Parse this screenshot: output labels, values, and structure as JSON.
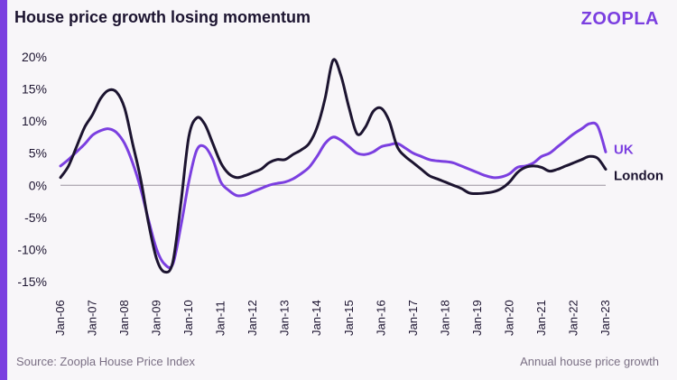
{
  "header": {
    "title": "House price growth losing momentum",
    "logo_text": "ZOOPLA"
  },
  "footer": {
    "source": "Source: Zoopla House Price Index",
    "note": "Annual house price growth"
  },
  "colors": {
    "accent": "#7b3fe0",
    "uk": "#7b3fe0",
    "london": "#1c1430",
    "zero_line": "#9a949f"
  },
  "chart_data": {
    "type": "line",
    "title": "House price growth losing momentum",
    "xlabel": "",
    "ylabel": "",
    "ylim": [
      -15,
      20
    ],
    "xlim": [
      "2006-01",
      "2023-01"
    ],
    "y_ticks": [
      "20%",
      "15%",
      "10%",
      "5%",
      "0%",
      "-5%",
      "-10%",
      "-15%"
    ],
    "x_ticks": [
      "Jan-06",
      "Jan-07",
      "Jan-08",
      "Jan-09",
      "Jan-10",
      "Jan-11",
      "Jan-12",
      "Jan-13",
      "Jan-14",
      "Jan-15",
      "Jan-16",
      "Jan-17",
      "Jan-18",
      "Jan-19",
      "Jan-20",
      "Jan-21",
      "Jan-22",
      "Jan-23"
    ],
    "grid": false,
    "legend": "end-of-line labels",
    "series": [
      {
        "name": "UK",
        "color": "#7b3fe0",
        "x": [
          "2006-01",
          "2006-04",
          "2006-07",
          "2006-10",
          "2007-01",
          "2007-04",
          "2007-07",
          "2007-10",
          "2008-01",
          "2008-04",
          "2008-07",
          "2008-10",
          "2009-01",
          "2009-04",
          "2009-07",
          "2009-10",
          "2010-01",
          "2010-04",
          "2010-07",
          "2010-10",
          "2011-01",
          "2011-04",
          "2011-07",
          "2011-10",
          "2012-01",
          "2012-04",
          "2012-07",
          "2012-10",
          "2013-01",
          "2013-04",
          "2013-07",
          "2013-10",
          "2014-01",
          "2014-04",
          "2014-07",
          "2014-10",
          "2015-01",
          "2015-04",
          "2015-07",
          "2015-10",
          "2016-01",
          "2016-04",
          "2016-07",
          "2016-10",
          "2017-01",
          "2017-04",
          "2017-07",
          "2017-10",
          "2018-01",
          "2018-04",
          "2018-07",
          "2018-10",
          "2019-01",
          "2019-04",
          "2019-07",
          "2019-10",
          "2020-01",
          "2020-04",
          "2020-07",
          "2020-10",
          "2021-01",
          "2021-04",
          "2021-07",
          "2021-10",
          "2022-01",
          "2022-04",
          "2022-07",
          "2022-10",
          "2023-01"
        ],
        "y": [
          3.0,
          4.0,
          5.2,
          6.4,
          7.8,
          8.5,
          8.8,
          8.2,
          6.5,
          3.5,
          -0.5,
          -5.5,
          -10.0,
          -12.3,
          -12.3,
          -6.5,
          0.5,
          5.5,
          6.0,
          4.0,
          0.5,
          -0.8,
          -1.6,
          -1.5,
          -1.0,
          -0.5,
          0.0,
          0.3,
          0.5,
          1.0,
          1.8,
          2.8,
          4.5,
          6.5,
          7.5,
          7.0,
          6.0,
          5.0,
          4.8,
          5.2,
          6.0,
          6.3,
          6.5,
          5.8,
          5.0,
          4.5,
          4.0,
          3.8,
          3.7,
          3.5,
          3.0,
          2.5,
          2.0,
          1.5,
          1.2,
          1.3,
          1.8,
          2.8,
          3.0,
          3.5,
          4.5,
          5.0,
          6.0,
          7.0,
          8.0,
          8.8,
          9.6,
          9.2,
          5.2
        ]
      },
      {
        "name": "London",
        "color": "#1c1430",
        "x": [
          "2006-01",
          "2006-04",
          "2006-07",
          "2006-10",
          "2007-01",
          "2007-04",
          "2007-07",
          "2007-10",
          "2008-01",
          "2008-04",
          "2008-07",
          "2008-10",
          "2009-01",
          "2009-04",
          "2009-07",
          "2009-10",
          "2010-01",
          "2010-04",
          "2010-07",
          "2010-10",
          "2011-01",
          "2011-04",
          "2011-07",
          "2011-10",
          "2012-01",
          "2012-04",
          "2012-07",
          "2012-10",
          "2013-01",
          "2013-04",
          "2013-07",
          "2013-10",
          "2014-01",
          "2014-04",
          "2014-07",
          "2014-10",
          "2015-01",
          "2015-04",
          "2015-07",
          "2015-10",
          "2016-01",
          "2016-04",
          "2016-07",
          "2016-10",
          "2017-01",
          "2017-04",
          "2017-07",
          "2017-10",
          "2018-01",
          "2018-04",
          "2018-07",
          "2018-10",
          "2019-01",
          "2019-04",
          "2019-07",
          "2019-10",
          "2020-01",
          "2020-04",
          "2020-07",
          "2020-10",
          "2021-01",
          "2021-04",
          "2021-07",
          "2021-10",
          "2022-01",
          "2022-04",
          "2022-07",
          "2022-10",
          "2023-01"
        ],
        "y": [
          1.2,
          3.0,
          6.0,
          9.0,
          11.0,
          13.5,
          14.8,
          14.5,
          12.0,
          6.5,
          1.0,
          -6.0,
          -11.5,
          -13.5,
          -12.0,
          -3.0,
          7.5,
          10.5,
          9.5,
          6.5,
          3.5,
          1.8,
          1.2,
          1.5,
          2.0,
          2.5,
          3.5,
          4.0,
          4.0,
          4.8,
          5.5,
          6.5,
          9.0,
          13.5,
          19.5,
          17.0,
          12.0,
          8.0,
          9.0,
          11.5,
          12.0,
          10.0,
          6.0,
          4.5,
          3.5,
          2.5,
          1.5,
          1.0,
          0.5,
          0.0,
          -0.5,
          -1.2,
          -1.3,
          -1.2,
          -1.0,
          -0.5,
          0.5,
          2.0,
          2.8,
          3.0,
          2.8,
          2.2,
          2.5,
          3.0,
          3.5,
          4.0,
          4.5,
          4.2,
          2.5
        ]
      }
    ]
  }
}
